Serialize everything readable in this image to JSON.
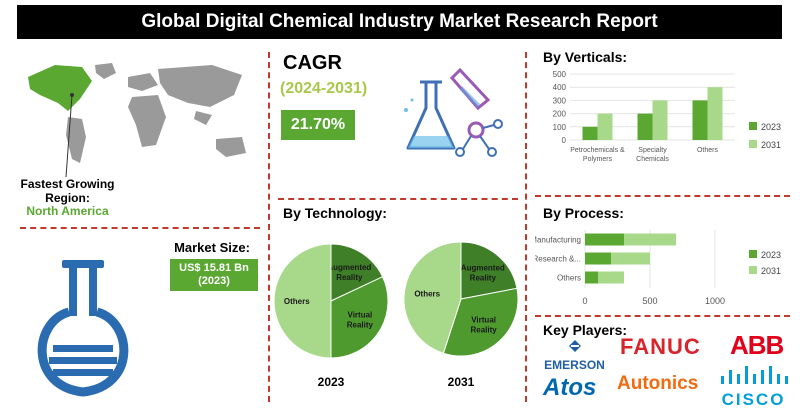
{
  "title": "Global Digital Chemical Industry Market Research Report",
  "region": {
    "label": "Fastest Growing Region:",
    "value": "North America"
  },
  "cagr": {
    "label": "CAGR",
    "period": "(2024-2031)",
    "value": "21.70%"
  },
  "market_size": {
    "label": "Market Size:",
    "value": "US$ 15.81 Bn",
    "year": "(2023)"
  },
  "sections": {
    "verticals": "By Verticals:",
    "technology": "By Technology:",
    "process": "By Process:",
    "players": "Key Players:"
  },
  "players": [
    "EMERSON",
    "FANUC",
    "ABB",
    "Atos",
    "Autonics",
    "CISCO"
  ],
  "colors": {
    "dark_green": "#5aa832",
    "light_green": "#a8d88a",
    "mid_green": "#4e9a2f",
    "red": "#c0392b",
    "deep_green": "#3e7f28"
  },
  "chart_data": [
    {
      "type": "bar",
      "title": "By Verticals:",
      "categories": [
        "Petrochemicals & Polymers",
        "Specialty Chemicals",
        "Others"
      ],
      "category_lines": [
        [
          "Petrochemicals &",
          "Polymers"
        ],
        [
          "Specialty",
          "Chemicals"
        ],
        [
          "Others"
        ]
      ],
      "series": [
        {
          "name": "2023",
          "values": [
            100,
            200,
            300
          ]
        },
        {
          "name": "2031",
          "values": [
            200,
            300,
            400
          ]
        }
      ],
      "ylim": [
        0,
        500
      ],
      "yticks": [
        "0",
        "100",
        "200",
        "300",
        "400",
        "500"
      ],
      "legend": "right"
    },
    {
      "type": "pie",
      "title": "2023",
      "labels": [
        "Augmented Reality",
        "Virtual Reality",
        "Others"
      ],
      "label_lines": [
        [
          "Augmented",
          "Reality"
        ],
        [
          "Virtual",
          "Reality"
        ],
        [
          "Others"
        ]
      ],
      "values": [
        18,
        32,
        50
      ]
    },
    {
      "type": "pie",
      "title": "2031",
      "labels": [
        "Augmented Reality",
        "Virtual Reality",
        "Others"
      ],
      "label_lines": [
        [
          "Augmented",
          "Reality"
        ],
        [
          "Virtual",
          "Reality"
        ],
        [
          "Others"
        ]
      ],
      "values": [
        22,
        33,
        45
      ]
    },
    {
      "type": "bar",
      "orientation": "horizontal",
      "title": "By Process:",
      "categories": [
        "Manufacturing",
        "Research &...",
        "Others"
      ],
      "series": [
        {
          "name": "2023",
          "values": [
            300,
            200,
            100
          ]
        },
        {
          "name": "2031",
          "values": [
            700,
            500,
            300
          ]
        }
      ],
      "xlim": [
        0,
        1000
      ],
      "xticks": [
        "0",
        "500",
        "1000"
      ],
      "legend": "right"
    }
  ]
}
